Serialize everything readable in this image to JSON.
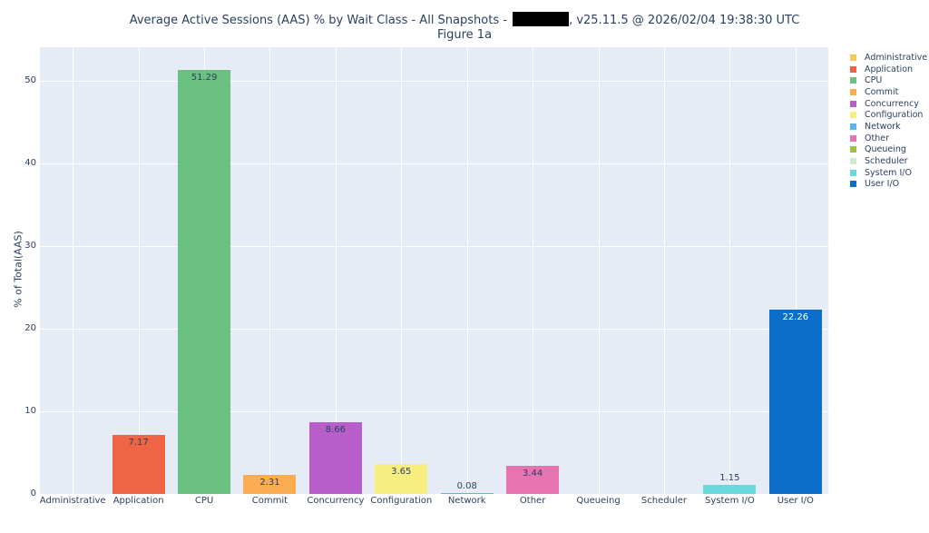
{
  "header": {
    "title_prefix": "Average Active Sessions (AAS) % by Wait Class - All Snapshots -",
    "title_suffix": ", v25.11.5 @ 2026/02/04 19:38:30 UTC",
    "subtitle": "Figure 1a"
  },
  "chart_data": {
    "type": "bar",
    "title": "Average Active Sessions (AAS) % by Wait Class - All Snapshots - [redacted], v25.11.5 @ 2026/02/04 19:38:30 UTC",
    "subtitle": "Figure 1a",
    "xlabel": "",
    "ylabel": "% of Total(AAS)",
    "ylim": [
      0,
      54
    ],
    "yticks": [
      0,
      10,
      20,
      30,
      40,
      50
    ],
    "grid": true,
    "legend_position": "right",
    "categories": [
      "Administrative",
      "Application",
      "CPU",
      "Commit",
      "Concurrency",
      "Configuration",
      "Network",
      "Other",
      "Queueing",
      "Scheduler",
      "System I/O",
      "User I/O"
    ],
    "values": [
      0,
      7.17,
      51.29,
      2.31,
      8.66,
      3.65,
      0.08,
      3.44,
      0,
      0,
      1.15,
      22.26
    ],
    "data_labels": [
      "",
      "7.17",
      "51.29",
      "2.31",
      "8.66",
      "3.65",
      "0.08",
      "3.44",
      "",
      "",
      "1.15",
      "22.26"
    ],
    "colors": [
      "#f6c85f",
      "#ef6445",
      "#6bc181",
      "#fcad52",
      "#b85ecb",
      "#f7ee7f",
      "#5fb4e8",
      "#e574b1",
      "#9dc141",
      "#d2e8cf",
      "#6ad9dc",
      "#0b6fca"
    ]
  },
  "legend": {
    "items": [
      {
        "label": "Administrative",
        "color": "#f6c85f"
      },
      {
        "label": "Application",
        "color": "#ef6445"
      },
      {
        "label": "CPU",
        "color": "#6bc181"
      },
      {
        "label": "Commit",
        "color": "#fcad52"
      },
      {
        "label": "Concurrency",
        "color": "#b85ecb"
      },
      {
        "label": "Configuration",
        "color": "#f7ee7f"
      },
      {
        "label": "Network",
        "color": "#5fb4e8"
      },
      {
        "label": "Other",
        "color": "#e574b1"
      },
      {
        "label": "Queueing",
        "color": "#9dc141"
      },
      {
        "label": "Scheduler",
        "color": "#d2e8cf"
      },
      {
        "label": "System I/O",
        "color": "#6ad9dc"
      },
      {
        "label": "User I/O",
        "color": "#0b6fca"
      }
    ]
  },
  "axis": {
    "ylabel": "% of Total(AAS)",
    "yticks": [
      "0",
      "10",
      "20",
      "30",
      "40",
      "50"
    ]
  }
}
